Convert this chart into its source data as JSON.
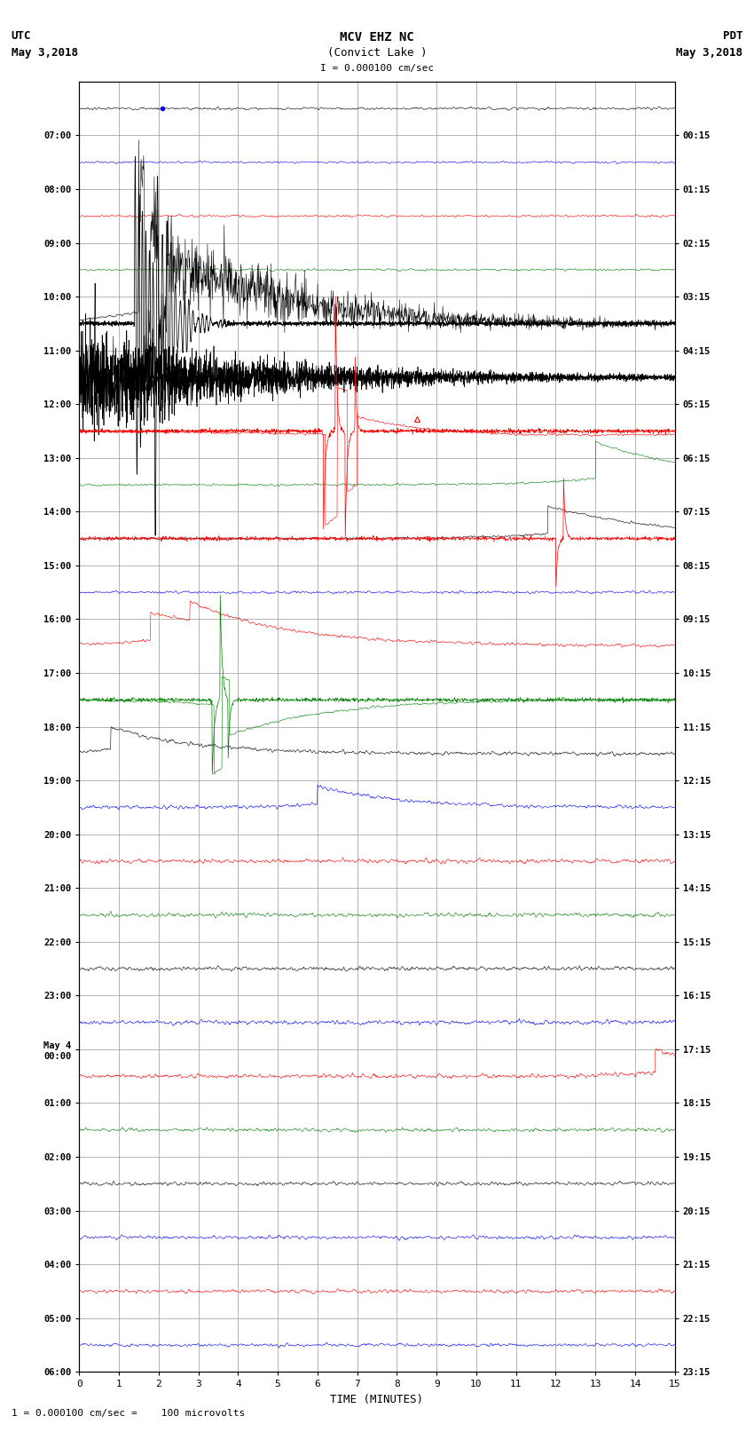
{
  "title_line1": "MCV EHZ NC",
  "title_line2": "(Convict Lake )",
  "title_line3": "I = 0.000100 cm/sec",
  "left_header1": "UTC",
  "left_header2": "May 3,2018",
  "right_header1": "PDT",
  "right_header2": "May 3,2018",
  "left_times": [
    "07:00",
    "08:00",
    "09:00",
    "10:00",
    "11:00",
    "12:00",
    "13:00",
    "14:00",
    "15:00",
    "16:00",
    "17:00",
    "18:00",
    "19:00",
    "20:00",
    "21:00",
    "22:00",
    "23:00",
    "May 4\n00:00",
    "01:00",
    "02:00",
    "03:00",
    "04:00",
    "05:00",
    "06:00"
  ],
  "right_times": [
    "00:15",
    "01:15",
    "02:15",
    "03:15",
    "04:15",
    "05:15",
    "06:15",
    "07:15",
    "08:15",
    "09:15",
    "10:15",
    "11:15",
    "12:15",
    "13:15",
    "14:15",
    "15:15",
    "16:15",
    "17:15",
    "18:15",
    "19:15",
    "20:15",
    "21:15",
    "22:15",
    "23:15"
  ],
  "xlabel": "TIME (MINUTES)",
  "footer": "1 = 0.000100 cm/sec =    100 microvolts",
  "bg_color": "#ffffff",
  "grid_color": "#999999",
  "num_rows": 24,
  "xlim_min": 0,
  "xlim_max": 15,
  "colors_cycle": [
    "#000000",
    "#0000ff",
    "#ff0000",
    "#008000"
  ]
}
